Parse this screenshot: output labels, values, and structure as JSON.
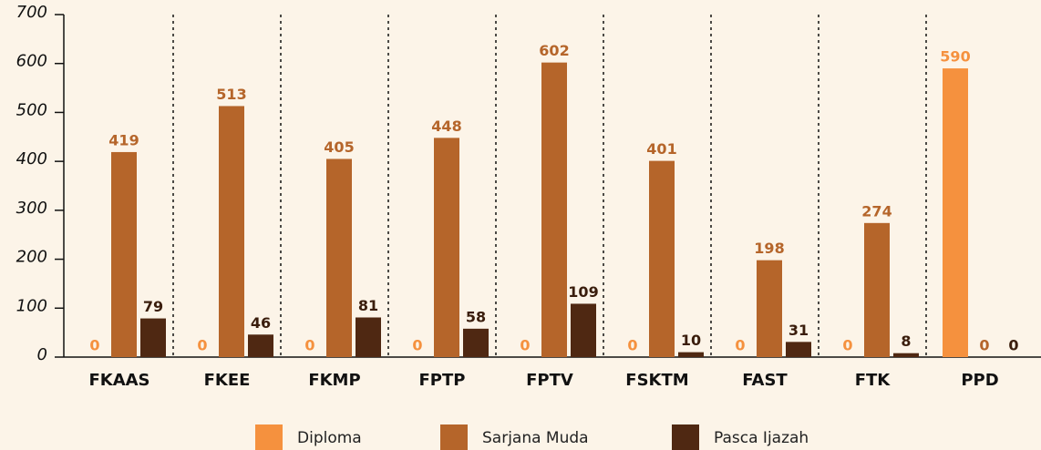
{
  "chart_data": {
    "type": "bar",
    "categories": [
      "FKAAS",
      "FKEE",
      "FKMP",
      "FPTP",
      "FPTV",
      "FSKTM",
      "FAST",
      "FTK",
      "PPD"
    ],
    "series": [
      {
        "name": "Diploma",
        "color": "#f5913e",
        "values": [
          0,
          0,
          0,
          0,
          0,
          0,
          0,
          0,
          590
        ]
      },
      {
        "name": "Sarjana Muda",
        "color": "#b5652a",
        "values": [
          419,
          513,
          405,
          448,
          602,
          401,
          198,
          274,
          0
        ]
      },
      {
        "name": "Pasca Ijazah",
        "color": "#4f2812",
        "values": [
          79,
          46,
          81,
          58,
          109,
          10,
          31,
          8,
          0
        ]
      }
    ],
    "ylim": [
      0,
      700
    ],
    "yticks": [
      0,
      100,
      200,
      300,
      400,
      500,
      600,
      700
    ],
    "legend": "bottom"
  }
}
